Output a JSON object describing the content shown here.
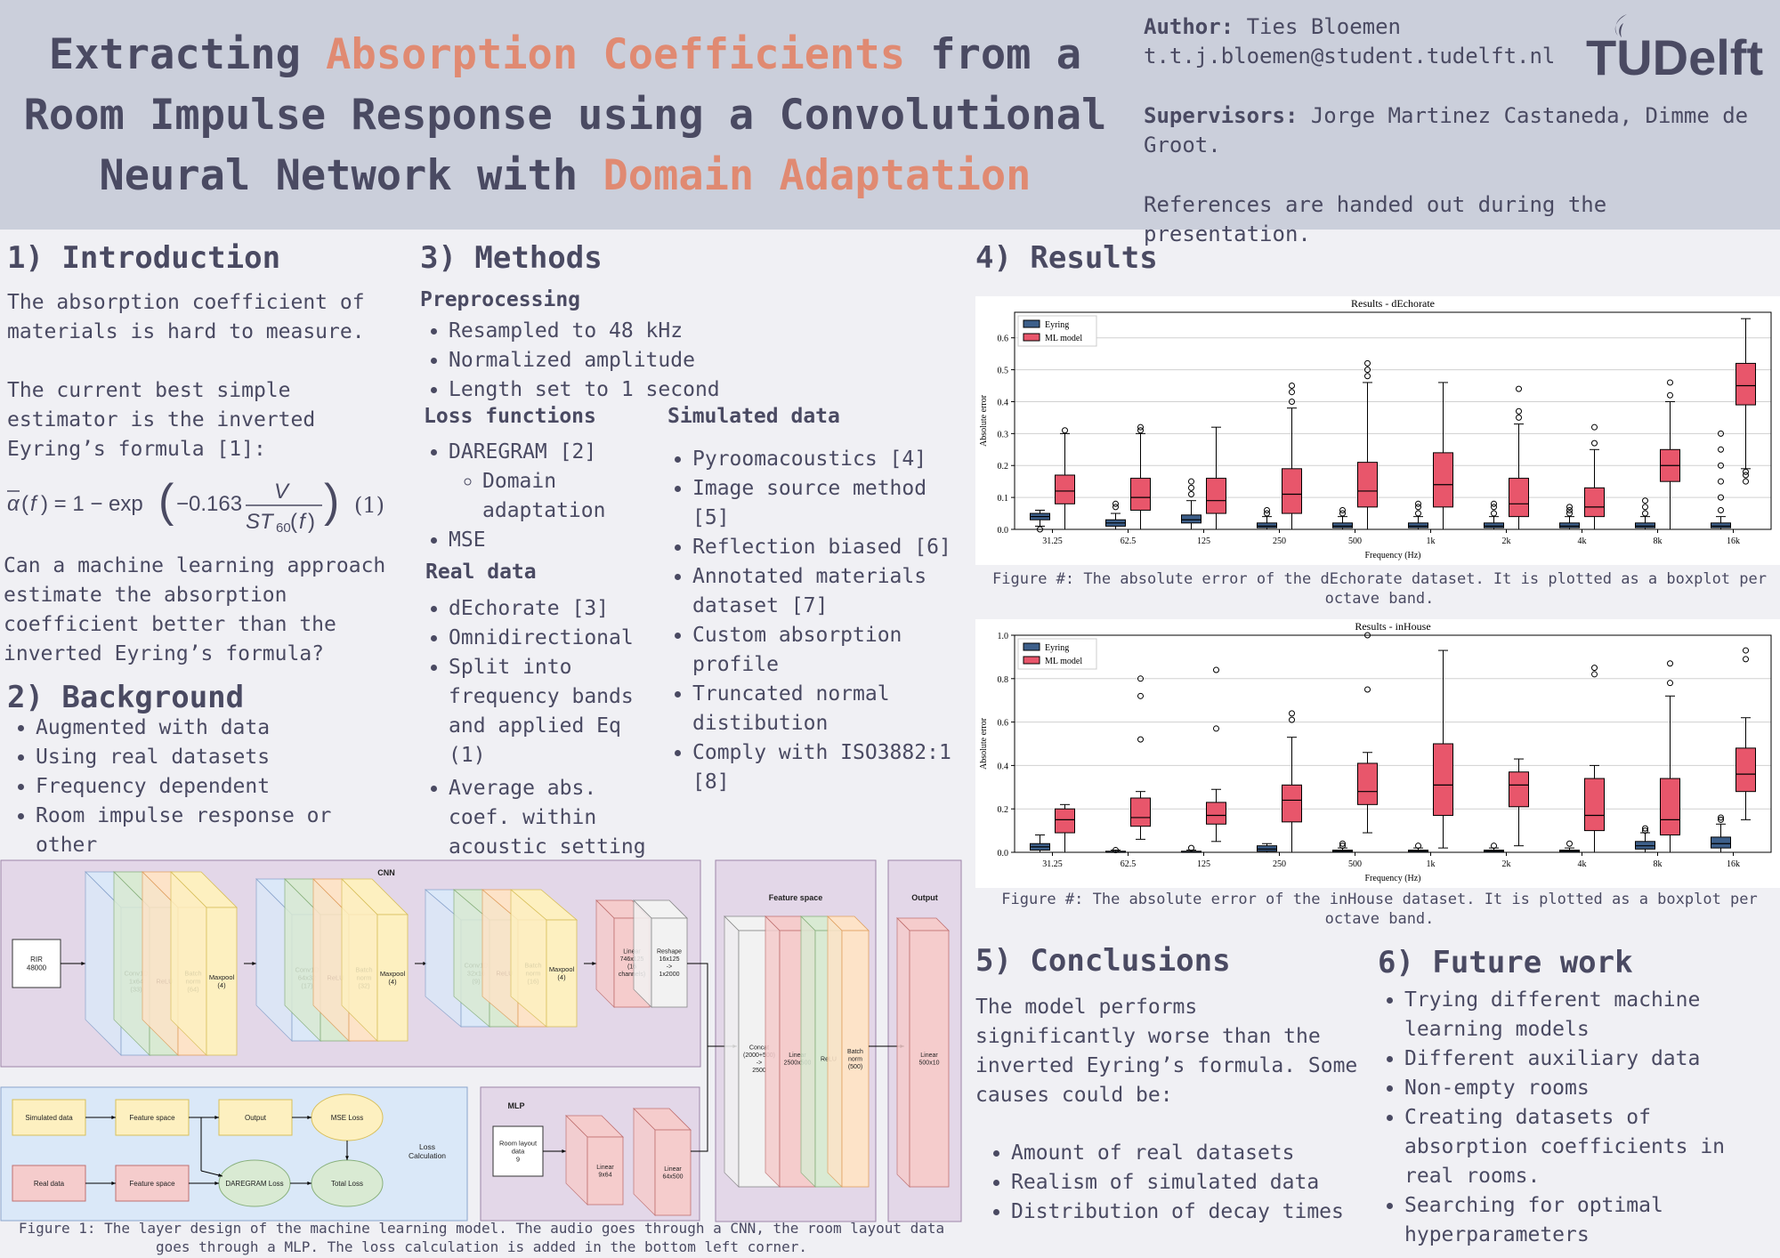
{
  "header": {
    "title_parts": [
      "Extracting ",
      "Absorption Coefficients",
      " from a Room Impulse Response using a Convolutional Neural Network with ",
      "Domain Adaptation"
    ],
    "author_label": "Author:",
    "author": "Ties Bloemen",
    "email": "t.t.j.bloemen@student.tudelft.nl",
    "supervisors_label": "Supervisors:",
    "supervisors": "Jorge Martinez Castaneda, Dimme de Groot.",
    "references": "References are handed out during the presentation.",
    "logo_text": "TUDelft"
  },
  "intro": {
    "heading": "1) Introduction",
    "p1": "The absorption coefficient of materials is hard to measure.",
    "p2": "The current best simple estimator is the inverted Eyring’s formula [1]:",
    "formula_number": "(1)",
    "p3": "Can a machine learning approach estimate the absorption coefficient better than the inverted Eyring’s formula?"
  },
  "background": {
    "heading": "2) Background",
    "items": [
      "Augmented with data",
      "Using real datasets",
      "Frequency dependent",
      "Room impulse response or other"
    ]
  },
  "methods": {
    "heading": "3) Methods",
    "preprocessing_label": "Preprocessing",
    "preprocessing": [
      "Resampled to 48 kHz",
      "Normalized amplitude",
      "Length set to 1 second"
    ],
    "loss_label": "Loss functions",
    "loss_items": [
      "DAREGRAM [2]",
      "Domain adaptation",
      "MSE"
    ],
    "real_label": "Real data",
    "real_items": [
      "dEchorate [3]",
      "Omnidirectional",
      "Split into frequency bands and applied Eq (1)",
      "Average abs. coef. within acoustic setting"
    ],
    "sim_label": "Simulated data",
    "sim_items": [
      "Pyroomacoustics [4]",
      "Image source method [5]",
      "Reflection biased [6]",
      "Annotated materials dataset [7]",
      "Custom absorption profile",
      "Truncated normal distibution",
      "Comply with ISO3882:1 [8]"
    ]
  },
  "results": {
    "heading": "4) Results",
    "caption1": "Figure #: The absolute error of the dEchorate dataset. It is plotted as a boxplot per octave band.",
    "caption2": "Figure #: The absolute error of the inHouse dataset. It is plotted as a boxplot per octave band."
  },
  "chart_data": [
    {
      "type": "boxplot",
      "title": "Results - dEchorate",
      "xlabel": "Frequency (Hz)",
      "ylabel": "Absolute error",
      "ylim": [
        0,
        0.68
      ],
      "yticks": [
        0.0,
        0.1,
        0.2,
        0.3,
        0.4,
        0.5,
        0.6
      ],
      "grid": "horizontal",
      "legend": "top-left",
      "categories": [
        "31.25",
        "62.5",
        "125",
        "250",
        "500",
        "1k",
        "2k",
        "4k",
        "8k",
        "16k"
      ],
      "series": [
        {
          "name": "Eyring",
          "color": "#3d5f8a",
          "boxes": [
            {
              "min": 0.01,
              "q1": 0.03,
              "med": 0.04,
              "q3": 0.05,
              "max": 0.06,
              "out": [
                0.0
              ]
            },
            {
              "min": 0.0,
              "q1": 0.01,
              "med": 0.02,
              "q3": 0.03,
              "max": 0.05,
              "out": [
                0.07,
                0.08
              ]
            },
            {
              "min": 0.0,
              "q1": 0.02,
              "med": 0.03,
              "q3": 0.045,
              "max": 0.09,
              "out": [
                0.11,
                0.13,
                0.15
              ]
            },
            {
              "min": 0.0,
              "q1": 0.005,
              "med": 0.01,
              "q3": 0.02,
              "max": 0.04,
              "out": [
                0.05,
                0.06
              ]
            },
            {
              "min": 0.0,
              "q1": 0.005,
              "med": 0.01,
              "q3": 0.02,
              "max": 0.04,
              "out": [
                0.05,
                0.06
              ]
            },
            {
              "min": 0.0,
              "q1": 0.005,
              "med": 0.01,
              "q3": 0.02,
              "max": 0.04,
              "out": [
                0.05,
                0.07,
                0.08
              ]
            },
            {
              "min": 0.0,
              "q1": 0.005,
              "med": 0.01,
              "q3": 0.02,
              "max": 0.04,
              "out": [
                0.05,
                0.07,
                0.08
              ]
            },
            {
              "min": 0.0,
              "q1": 0.005,
              "med": 0.01,
              "q3": 0.02,
              "max": 0.04,
              "out": [
                0.05,
                0.06,
                0.07
              ]
            },
            {
              "min": 0.0,
              "q1": 0.005,
              "med": 0.01,
              "q3": 0.02,
              "max": 0.04,
              "out": [
                0.05,
                0.07,
                0.09
              ]
            },
            {
              "min": 0.0,
              "q1": 0.005,
              "med": 0.01,
              "q3": 0.02,
              "max": 0.04,
              "out": [
                0.06,
                0.1,
                0.15,
                0.2,
                0.25,
                0.3
              ]
            }
          ]
        },
        {
          "name": "ML model",
          "color": "#e8566b",
          "boxes": [
            {
              "min": 0.0,
              "q1": 0.08,
              "med": 0.12,
              "q3": 0.17,
              "max": 0.3,
              "out": [
                0.31
              ]
            },
            {
              "min": 0.0,
              "q1": 0.06,
              "med": 0.1,
              "q3": 0.16,
              "max": 0.3,
              "out": [
                0.31,
                0.32
              ]
            },
            {
              "min": 0.0,
              "q1": 0.05,
              "med": 0.09,
              "q3": 0.16,
              "max": 0.32,
              "out": []
            },
            {
              "min": 0.0,
              "q1": 0.05,
              "med": 0.11,
              "q3": 0.19,
              "max": 0.38,
              "out": [
                0.4,
                0.43,
                0.45
              ]
            },
            {
              "min": 0.0,
              "q1": 0.07,
              "med": 0.12,
              "q3": 0.21,
              "max": 0.46,
              "out": [
                0.48,
                0.5,
                0.52
              ]
            },
            {
              "min": 0.0,
              "q1": 0.07,
              "med": 0.14,
              "q3": 0.24,
              "max": 0.46,
              "out": []
            },
            {
              "min": 0.0,
              "q1": 0.04,
              "med": 0.08,
              "q3": 0.16,
              "max": 0.33,
              "out": [
                0.35,
                0.37,
                0.44
              ]
            },
            {
              "min": 0.0,
              "q1": 0.04,
              "med": 0.07,
              "q3": 0.13,
              "max": 0.25,
              "out": [
                0.27,
                0.32
              ]
            },
            {
              "min": 0.0,
              "q1": 0.15,
              "med": 0.2,
              "q3": 0.25,
              "max": 0.4,
              "out": [
                0.42,
                0.46
              ]
            },
            {
              "min": 0.19,
              "q1": 0.39,
              "med": 0.45,
              "q3": 0.52,
              "max": 0.66,
              "out": [
                0.15,
                0.17,
                0.18
              ]
            }
          ]
        }
      ]
    },
    {
      "type": "boxplot",
      "title": "Results - inHouse",
      "xlabel": "Frequency (Hz)",
      "ylabel": "Absolute error",
      "ylim": [
        0,
        1.0
      ],
      "yticks": [
        0.0,
        0.2,
        0.4,
        0.6,
        0.8,
        1.0
      ],
      "grid": "horizontal",
      "legend": "top-left",
      "categories": [
        "31.25",
        "62.5",
        "125",
        "250",
        "500",
        "1k",
        "2k",
        "4k",
        "8k",
        "16k"
      ],
      "series": [
        {
          "name": "Eyring",
          "color": "#3d5f8a",
          "boxes": [
            {
              "min": 0.0,
              "q1": 0.01,
              "med": 0.025,
              "q3": 0.04,
              "max": 0.08,
              "out": []
            },
            {
              "min": 0.0,
              "q1": 0.0,
              "med": 0.0,
              "q3": 0.005,
              "max": 0.01,
              "out": [
                0.01
              ]
            },
            {
              "min": 0.0,
              "q1": 0.0,
              "med": 0.0,
              "q3": 0.005,
              "max": 0.01,
              "out": [
                0.02
              ]
            },
            {
              "min": 0.0,
              "q1": 0.005,
              "med": 0.015,
              "q3": 0.03,
              "max": 0.04,
              "out": []
            },
            {
              "min": 0.0,
              "q1": 0.0,
              "med": 0.005,
              "q3": 0.01,
              "max": 0.02,
              "out": [
                0.03,
                0.04
              ]
            },
            {
              "min": 0.0,
              "q1": 0.0,
              "med": 0.005,
              "q3": 0.01,
              "max": 0.02,
              "out": [
                0.03
              ]
            },
            {
              "min": 0.0,
              "q1": 0.0,
              "med": 0.005,
              "q3": 0.01,
              "max": 0.02,
              "out": [
                0.03
              ]
            },
            {
              "min": 0.0,
              "q1": 0.0,
              "med": 0.005,
              "q3": 0.01,
              "max": 0.02,
              "out": [
                0.04
              ]
            },
            {
              "min": 0.0,
              "q1": 0.015,
              "med": 0.03,
              "q3": 0.05,
              "max": 0.09,
              "out": [
                0.1,
                0.11
              ]
            },
            {
              "min": 0.0,
              "q1": 0.02,
              "med": 0.04,
              "q3": 0.07,
              "max": 0.13,
              "out": [
                0.15,
                0.16
              ]
            }
          ]
        },
        {
          "name": "ML model",
          "color": "#e8566b",
          "boxes": [
            {
              "min": 0.0,
              "q1": 0.09,
              "med": 0.15,
              "q3": 0.2,
              "max": 0.22,
              "out": []
            },
            {
              "min": 0.06,
              "q1": 0.12,
              "med": 0.16,
              "q3": 0.25,
              "max": 0.28,
              "out": [
                0.52,
                0.72,
                0.8
              ]
            },
            {
              "min": 0.05,
              "q1": 0.13,
              "med": 0.17,
              "q3": 0.23,
              "max": 0.29,
              "out": [
                0.57,
                0.84
              ]
            },
            {
              "min": 0.0,
              "q1": 0.14,
              "med": 0.24,
              "q3": 0.31,
              "max": 0.53,
              "out": [
                0.61,
                0.64
              ]
            },
            {
              "min": 0.09,
              "q1": 0.22,
              "med": 0.28,
              "q3": 0.41,
              "max": 0.46,
              "out": [
                0.75,
                1.0
              ]
            },
            {
              "min": 0.02,
              "q1": 0.17,
              "med": 0.31,
              "q3": 0.5,
              "max": 0.93,
              "out": []
            },
            {
              "min": 0.03,
              "q1": 0.21,
              "med": 0.31,
              "q3": 0.37,
              "max": 0.43,
              "out": []
            },
            {
              "min": 0.0,
              "q1": 0.1,
              "med": 0.17,
              "q3": 0.34,
              "max": 0.4,
              "out": [
                0.82,
                0.85
              ]
            },
            {
              "min": 0.0,
              "q1": 0.08,
              "med": 0.15,
              "q3": 0.34,
              "max": 0.72,
              "out": [
                0.78,
                0.87
              ]
            },
            {
              "min": 0.15,
              "q1": 0.28,
              "med": 0.36,
              "q3": 0.48,
              "max": 0.62,
              "out": [
                0.89,
                0.93
              ]
            }
          ]
        }
      ]
    }
  ],
  "conclusions": {
    "heading": "5) Conclusions",
    "p1": "The model performs significantly worse than the inverted Eyring’s formula. Some causes could be:",
    "items": [
      "Amount of real datasets",
      "Realism of simulated data",
      "Distribution of decay times"
    ]
  },
  "future": {
    "heading": "6) Future work",
    "items": [
      "Trying different machine learning models",
      "Different auxiliary data",
      "Non-empty rooms",
      "Creating datasets of absorption coefficients in real rooms.",
      "Searching for optimal hyperparameters"
    ]
  },
  "diagram": {
    "cnn_label": "CNN",
    "rir_label": [
      "RIR",
      "48000"
    ],
    "block1": [
      [
        "Conv1D",
        "1x64",
        "(33)"
      ],
      [
        "ReLU"
      ],
      [
        "Batch",
        "norm",
        "(64)"
      ],
      [
        "Maxpool",
        "(4)"
      ]
    ],
    "block2": [
      [
        "Conv1D",
        "64x32",
        "(17)"
      ],
      [
        "ReLU"
      ],
      [
        "Batch",
        "norm",
        "(32)"
      ],
      [
        "Maxpool",
        "(4)"
      ]
    ],
    "block3": [
      [
        "Conv1D",
        "32x16",
        "(9)"
      ],
      [
        "ReLU"
      ],
      [
        "Batch",
        "norm",
        "(16)"
      ],
      [
        "Maxpool",
        "(4)"
      ]
    ],
    "linear1": [
      "Linear",
      "746x125",
      "(16",
      "channels)"
    ],
    "reshape": [
      "Reshape",
      "16x125",
      "->",
      "1x2000"
    ],
    "feature_label": "Feature space",
    "concat": [
      "Concat",
      "(2000+500)",
      "->",
      "2500"
    ],
    "linear2": [
      "Linear",
      "2500x500"
    ],
    "relu2": [
      "ReLU"
    ],
    "batch2": [
      "Batch",
      "norm",
      "(500)"
    ],
    "output_label": "Output",
    "linear_out": [
      "Linear",
      "500x10"
    ],
    "mlp_label": "MLP",
    "room_layout": [
      "Room layout",
      "data",
      "9"
    ],
    "mlp_lin1": [
      "Linear",
      "9x64"
    ],
    "mlp_lin2": [
      "Linear",
      "64x500"
    ],
    "loss_label": [
      "Loss",
      "Calculation"
    ],
    "loss_nodes": {
      "sim": "Simulated data",
      "fs1": "Feature space",
      "out": "Output",
      "mse": "MSE Loss",
      "real": "Real data",
      "fs2": "Feature space",
      "dar": "DAREGRAM Loss",
      "total": "Total Loss"
    },
    "caption": "Figure 1: The layer design of the machine learning model. The audio goes through a CNN, the room layout data goes through a MLP. The loss calculation is added in the bottom left corner."
  }
}
